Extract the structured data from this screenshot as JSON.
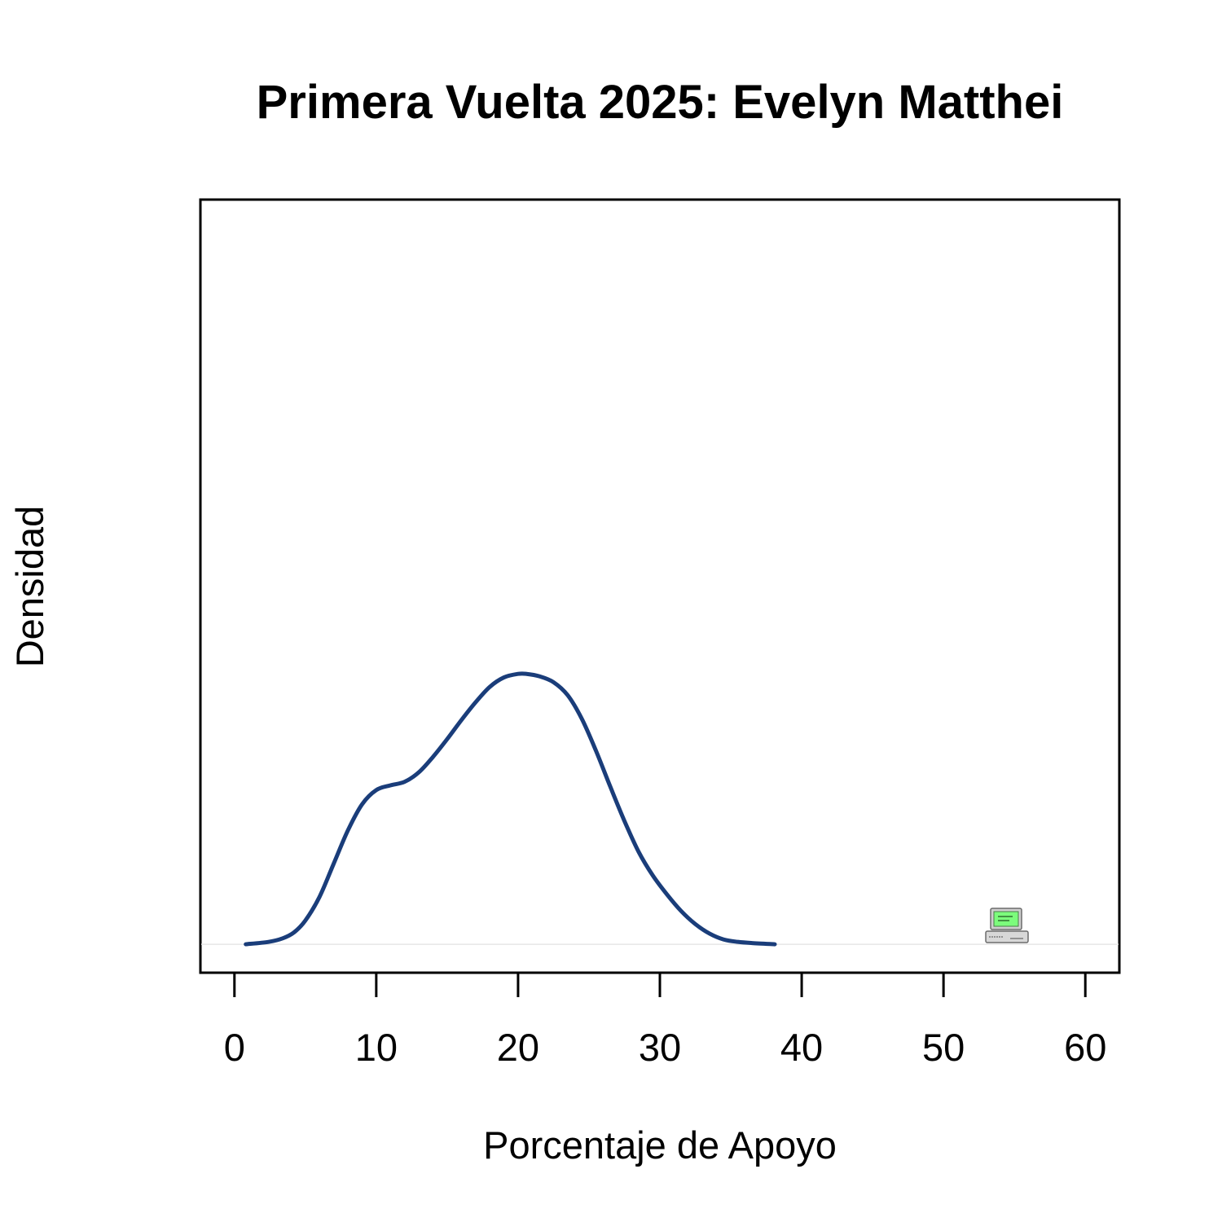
{
  "chart_data": {
    "type": "line",
    "title": "Primera Vuelta 2025: Evelyn Matthei",
    "xlabel": "Porcentaje de Apoyo",
    "ylabel": "Densidad",
    "xlim": [
      -2.4,
      62.4
    ],
    "ylim": [
      -0.0024,
      0.0628
    ],
    "x_ticks": [
      0,
      10,
      20,
      30,
      40,
      50,
      60
    ],
    "x_tick_labels": [
      "0",
      "10",
      "20",
      "30",
      "40",
      "50",
      "60"
    ],
    "grid": false,
    "legend": "none",
    "series": [
      {
        "color": "#1a3d7a",
        "x": [
          0.8,
          2.4,
          3.4,
          4.2,
          5.0,
          6.0,
          7.0,
          8.0,
          9.0,
          10.0,
          11.0,
          12.0,
          13.0,
          14.0,
          15.0,
          16.0,
          17.0,
          18.0,
          19.0,
          20.0,
          20.6,
          21.5,
          22.5,
          23.5,
          24.5,
          25.5,
          26.5,
          27.5,
          28.5,
          29.5,
          30.5,
          31.5,
          32.5,
          33.5,
          34.5,
          35.5,
          36.5,
          38.1
        ],
        "y": [
          0.0,
          0.0002,
          0.0005,
          0.001,
          0.002,
          0.004,
          0.0068,
          0.0096,
          0.0118,
          0.013,
          0.0134,
          0.0137,
          0.0145,
          0.0158,
          0.0173,
          0.0189,
          0.0204,
          0.0217,
          0.0225,
          0.0228,
          0.0228,
          0.0226,
          0.0221,
          0.021,
          0.019,
          0.0163,
          0.0133,
          0.0104,
          0.0078,
          0.0058,
          0.0042,
          0.0028,
          0.0017,
          0.0009,
          0.0004,
          0.0002,
          0.0001,
          0.0
        ]
      }
    ]
  },
  "watermark": {
    "icon": "computer-icon",
    "screen_color": "#7cfc7c"
  }
}
